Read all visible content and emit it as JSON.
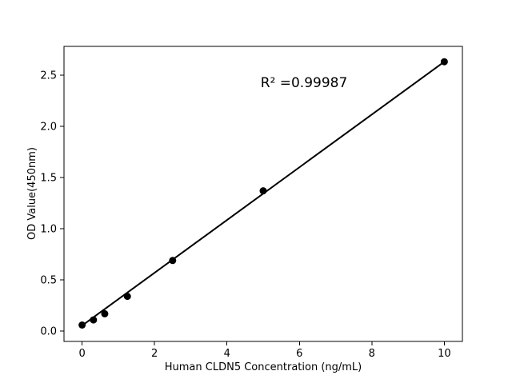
{
  "chart_data": {
    "type": "scatter",
    "title": "",
    "xlabel": "Human CLDN5 Concentration (ng/mL)",
    "ylabel": "OD Value(450nm)",
    "annotation": "R² =0.99987",
    "x": [
      0,
      0.313,
      0.625,
      1.25,
      2.5,
      5,
      10
    ],
    "y": [
      0.06,
      0.11,
      0.17,
      0.34,
      0.69,
      1.37,
      2.63
    ],
    "fit_line": {
      "x1": 0,
      "y1": 0.055,
      "x2": 10,
      "y2": 2.63
    },
    "xlim": [
      -0.5,
      10.5
    ],
    "ylim": [
      -0.1,
      2.78
    ],
    "x_ticks": [
      0,
      2,
      4,
      6,
      8,
      10
    ],
    "x_tick_labels": [
      "0",
      "2",
      "4",
      "6",
      "8",
      "10"
    ],
    "y_ticks": [
      0.0,
      0.5,
      1.0,
      1.5,
      2.0,
      2.5
    ],
    "y_tick_labels": [
      "0.0",
      "0.5",
      "1.0",
      "1.5",
      "2.0",
      "2.5"
    ],
    "grid": false,
    "legend": null,
    "marker_color": "#000000",
    "line_color": "#000000",
    "frame_color": "#000000",
    "background_color": "#ffffff"
  }
}
